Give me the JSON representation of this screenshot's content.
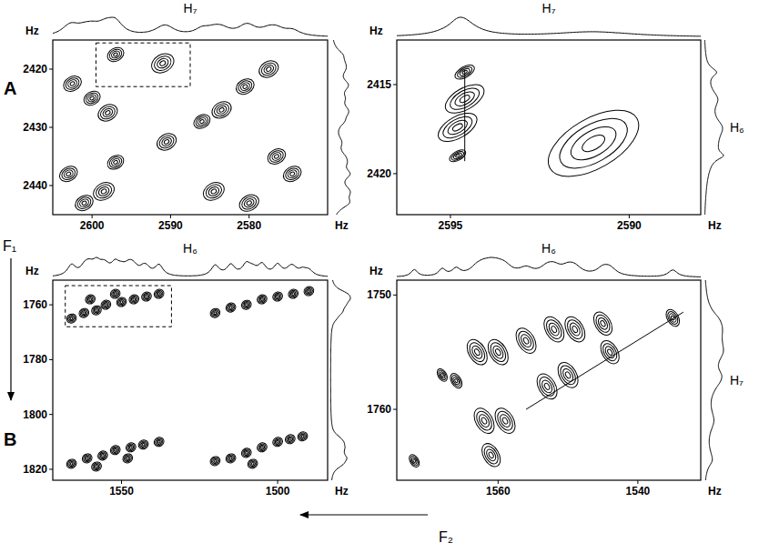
{
  "chart_data": [
    {
      "type": "contour",
      "panel": "A",
      "x_label": "H₇",
      "x_unit": "Hz",
      "y_unit": "Hz",
      "xlim": [
        2605,
        2570
      ],
      "ylim": [
        2415,
        2445
      ],
      "xticks": [
        2600,
        2590,
        2580
      ],
      "yticks": [
        2420,
        2430,
        2440
      ],
      "x": [
        2602.5,
        2597,
        2591,
        2598,
        2600,
        2590.5,
        2603,
        2598.5,
        2601,
        2597,
        2583.5,
        2580.5,
        2577.5,
        2584.5,
        2580,
        2576.5,
        2574.5,
        2586
      ],
      "y": [
        2422.5,
        2417.5,
        2419,
        2427.5,
        2425,
        2432.5,
        2438,
        2441,
        2443,
        2436,
        2427,
        2423,
        2420,
        2441,
        2443,
        2435,
        2438,
        2429
      ],
      "widths": [
        1.2,
        1.1,
        1.5,
        1.3,
        1.1,
        1.3,
        1.2,
        1.4,
        1.2,
        1.1,
        1.3,
        1.2,
        1.3,
        1.4,
        1.3,
        1.2,
        1.2,
        1.1
      ],
      "zoom_box": {
        "x": [
          2599.5,
          2587.5
        ],
        "y": [
          2415.5,
          2423
        ]
      }
    },
    {
      "type": "contour",
      "x_label": "H₇",
      "y_label": "H₆",
      "x_unit": "Hz",
      "y_unit": "Hz",
      "xlim": [
        2596.5,
        2588
      ],
      "ylim": [
        2412.5,
        2422.3
      ],
      "xticks": [
        2595,
        2590
      ],
      "yticks": [
        2415,
        2420
      ],
      "x": [
        2594.6,
        2594.6,
        2594.8,
        2594.8,
        2591
      ],
      "y": [
        2414.3,
        2415.8,
        2417.4,
        2419,
        2418.3
      ],
      "widths": [
        0.3,
        0.6,
        0.6,
        0.25,
        1.4
      ],
      "lines": [
        {
          "x": [
            2594.6,
            2594.6
          ],
          "y": [
            2414.2,
            2419.3
          ]
        }
      ]
    },
    {
      "type": "contour",
      "panel": "B",
      "x_label": "H₆",
      "x_unit": "Hz",
      "y_unit": "Hz",
      "xlim": [
        1572,
        1484
      ],
      "ylim": [
        1751,
        1824
      ],
      "xticks": [
        1550,
        1500
      ],
      "yticks": [
        1760,
        1780,
        1800,
        1820
      ],
      "x": [
        1566,
        1562,
        1558,
        1555,
        1550,
        1546,
        1542,
        1538,
        1560,
        1552,
        1520,
        1515,
        1510,
        1505,
        1500,
        1495,
        1490,
        1566,
        1561,
        1556,
        1552,
        1547,
        1543,
        1538,
        1558,
        1548,
        1520,
        1515,
        1510,
        1505,
        1500,
        1496,
        1492,
        1508
      ],
      "y": [
        1765,
        1763,
        1762,
        1760,
        1759,
        1758,
        1757,
        1756,
        1758,
        1756,
        1763,
        1761,
        1760,
        1758,
        1757,
        1756,
        1755,
        1818,
        1816,
        1815,
        1813,
        1812,
        1811,
        1810,
        1819,
        1816,
        1817,
        1816,
        1814,
        1812,
        1810,
        1809,
        1808,
        1818
      ],
      "widths": [
        1.6,
        1.6,
        1.6,
        1.6,
        1.6,
        1.6,
        1.6,
        1.6,
        1.6,
        1.6,
        1.6,
        1.6,
        1.6,
        1.6,
        1.6,
        1.6,
        1.6,
        1.6,
        1.6,
        1.6,
        1.6,
        1.6,
        1.6,
        1.6,
        1.6,
        1.6,
        1.6,
        1.6,
        1.6,
        1.6,
        1.6,
        1.6,
        1.6,
        1.6
      ],
      "zoom_box": {
        "x": [
          1568,
          1534
        ],
        "y": [
          1753,
          1768
        ]
      }
    },
    {
      "type": "contour",
      "x_label": "H₆",
      "y_label": "H₇",
      "x_unit": "Hz",
      "y_unit": "Hz",
      "xlim": [
        1574.5,
        1531
      ],
      "ylim": [
        1748.7,
        1766.2
      ],
      "xticks": [
        1560,
        1540
      ],
      "yticks": [
        1750,
        1760
      ],
      "x": [
        1563,
        1560,
        1556,
        1552,
        1549,
        1545,
        1535,
        1566,
        1562,
        1559,
        1553,
        1550,
        1544,
        1561,
        1572,
        1568
      ],
      "y": [
        1755,
        1755,
        1754,
        1753,
        1753,
        1752.5,
        1752,
        1757.5,
        1761,
        1761,
        1758,
        1757,
        1755,
        1764,
        1764.5,
        1757
      ],
      "widths": [
        1.2,
        1.2,
        1.2,
        1.2,
        1.2,
        1.1,
        0.8,
        0.7,
        1.2,
        1.2,
        1.2,
        1.2,
        1.1,
        1.1,
        0.6,
        0.6
      ],
      "lines": [
        {
          "x": [
            1533.5,
            1556
          ],
          "y": [
            1751.5,
            1760
          ]
        }
      ]
    }
  ],
  "axis_arrows": {
    "f1": "F₁",
    "f2": "F₂"
  }
}
